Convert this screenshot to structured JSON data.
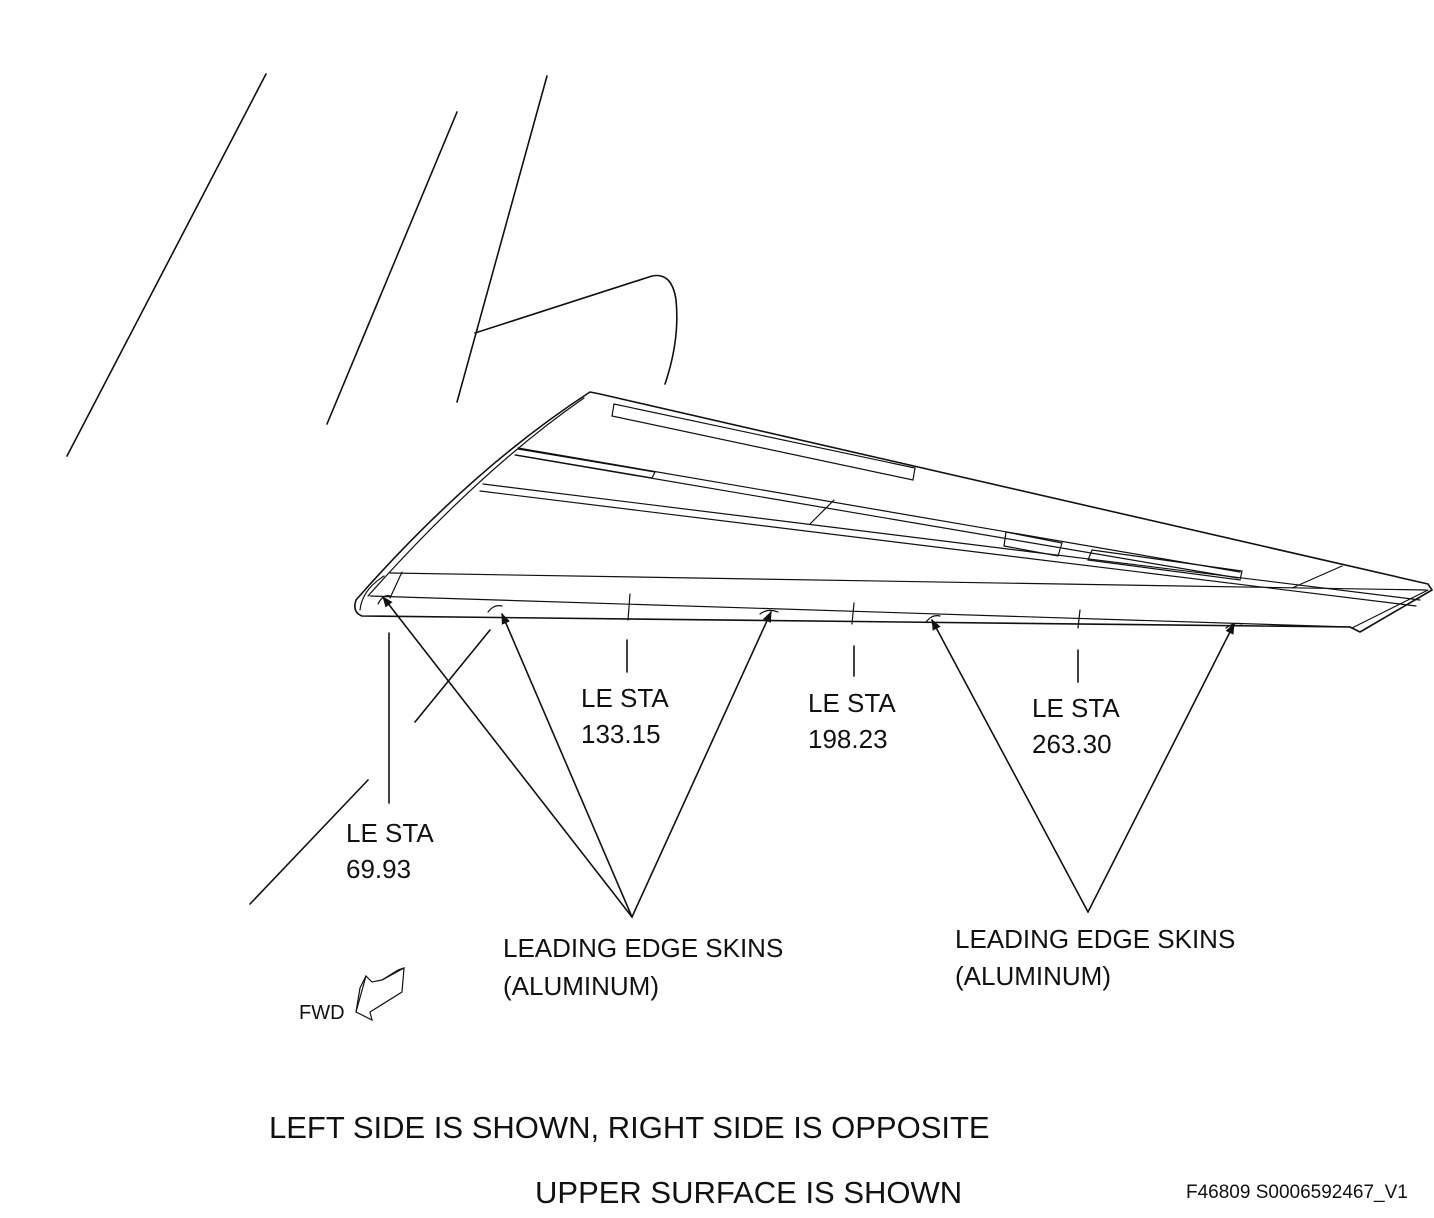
{
  "stations": [
    {
      "label": "LE STA",
      "value": "69.93"
    },
    {
      "label": "LE STA",
      "value": "133.15"
    },
    {
      "label": "LE STA",
      "value": "198.23"
    },
    {
      "label": "LE STA",
      "value": "263.30"
    }
  ],
  "skins_callouts": [
    {
      "line1": "LEADING EDGE SKINS",
      "line2": "(ALUMINUM)"
    },
    {
      "line1": "LEADING EDGE SKINS",
      "line2": "(ALUMINUM)"
    }
  ],
  "fwd_label": "FWD",
  "notes": {
    "line1": "LEFT SIDE IS SHOWN, RIGHT SIDE IS OPPOSITE",
    "line2": "UPPER SURFACE IS SHOWN"
  },
  "figure_id": "F46809 S0006592467_V1",
  "colors": {
    "ink": "#111111",
    "background": "#ffffff"
  }
}
